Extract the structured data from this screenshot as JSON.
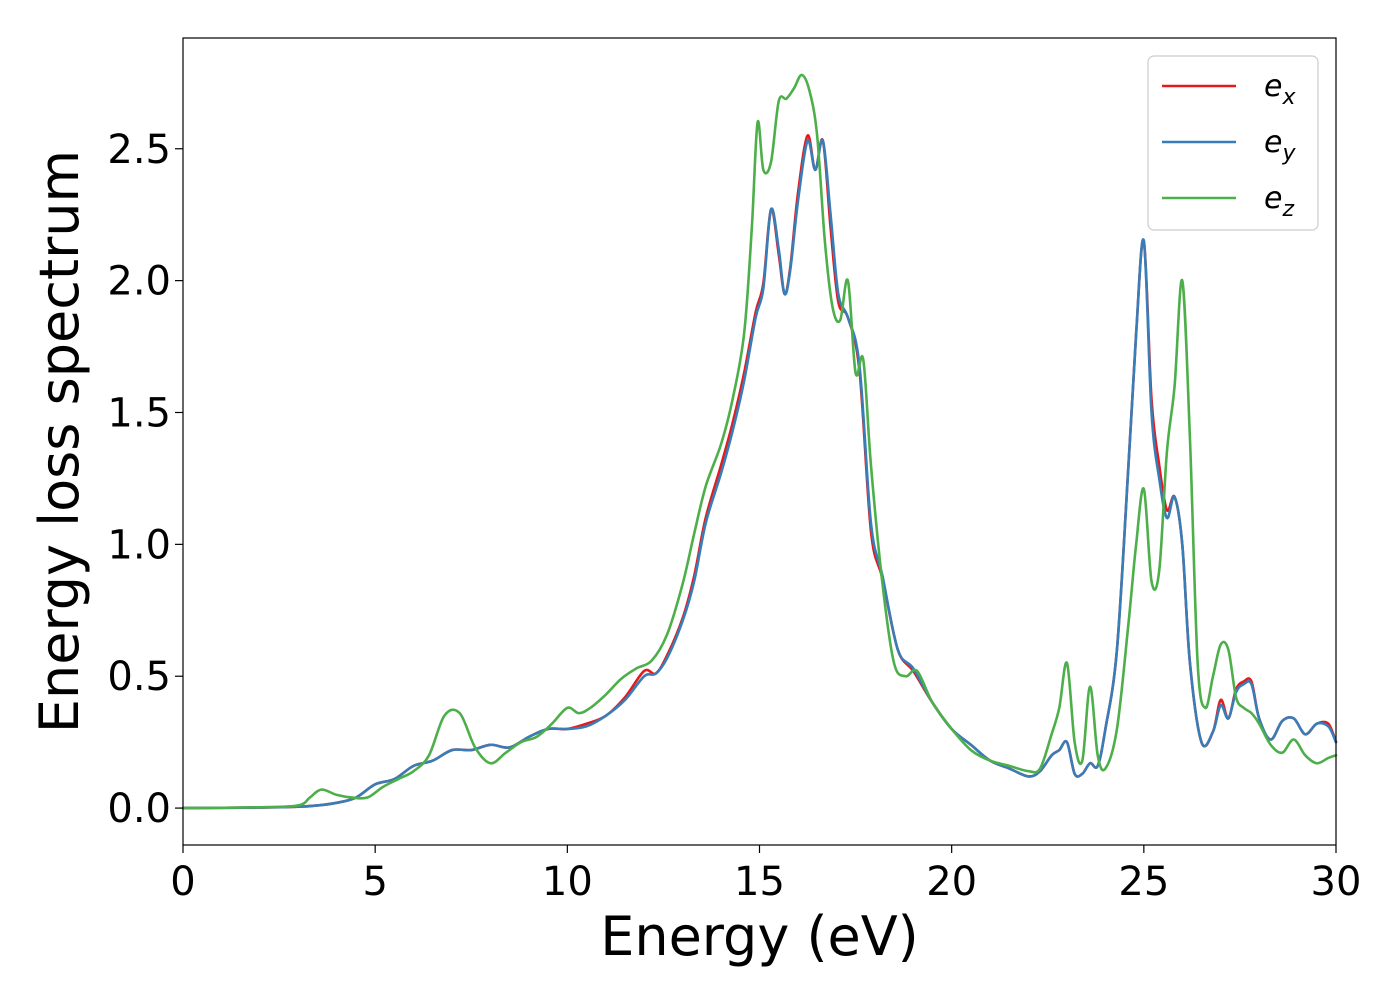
{
  "chart_data": {
    "type": "line",
    "title": "",
    "xlabel": "Energy (eV)",
    "ylabel": "Energy loss spectrum",
    "xlim": [
      0,
      30
    ],
    "ylim": [
      -0.14,
      2.92
    ],
    "xticks": [
      0,
      5,
      10,
      15,
      20,
      25,
      30
    ],
    "xtick_labels": [
      "0",
      "5",
      "10",
      "15",
      "20",
      "25",
      "30"
    ],
    "yticks": [
      0.0,
      0.5,
      1.0,
      1.5,
      2.0,
      2.5
    ],
    "ytick_labels": [
      "0.0",
      "0.5",
      "1.0",
      "1.5",
      "2.0",
      "2.5"
    ],
    "grid": false,
    "legend_position": "top-right",
    "legend": [
      {
        "base": "e",
        "sub": "x",
        "color": "#e41a1c"
      },
      {
        "base": "e",
        "sub": "y",
        "color": "#377eb8"
      },
      {
        "base": "e",
        "sub": "z",
        "color": "#4daf4a"
      }
    ],
    "series": [
      {
        "color": "#e41a1c",
        "x": [
          0,
          2,
          3,
          3.5,
          4,
          4.5,
          5,
          5.5,
          6,
          6.5,
          7,
          7.5,
          8,
          8.5,
          9,
          9.5,
          10,
          10.5,
          11,
          11.5,
          12,
          12.3,
          12.6,
          13,
          13.3,
          13.6,
          14,
          14.3,
          14.6,
          14.9,
          15.1,
          15.3,
          15.5,
          15.65,
          15.8,
          16,
          16.25,
          16.45,
          16.65,
          16.85,
          17.05,
          17.3,
          17.6,
          17.9,
          18.2,
          18.6,
          19,
          19.5,
          20,
          20.5,
          21,
          21.5,
          22,
          22.3,
          22.6,
          22.8,
          23,
          23.2,
          23.4,
          23.6,
          23.8,
          24,
          24.3,
          24.6,
          24.8,
          25,
          25.2,
          25.4,
          25.6,
          25.8,
          26,
          26.2,
          26.5,
          26.8,
          27,
          27.2,
          27.4,
          27.6,
          27.8,
          28,
          28.3,
          28.6,
          28.9,
          29.2,
          29.5,
          29.8,
          30
        ],
        "y": [
          0,
          0.002,
          0.005,
          0.01,
          0.02,
          0.04,
          0.09,
          0.11,
          0.16,
          0.18,
          0.22,
          0.22,
          0.24,
          0.23,
          0.27,
          0.3,
          0.3,
          0.32,
          0.35,
          0.42,
          0.52,
          0.51,
          0.58,
          0.72,
          0.88,
          1.1,
          1.3,
          1.46,
          1.65,
          1.88,
          1.99,
          2.27,
          2.1,
          1.95,
          2.05,
          2.33,
          2.55,
          2.42,
          2.53,
          2.2,
          1.92,
          1.86,
          1.66,
          1.05,
          0.87,
          0.6,
          0.52,
          0.4,
          0.3,
          0.24,
          0.18,
          0.15,
          0.12,
          0.14,
          0.2,
          0.22,
          0.25,
          0.13,
          0.13,
          0.17,
          0.16,
          0.3,
          0.6,
          1.3,
          1.8,
          2.15,
          1.55,
          1.3,
          1.13,
          1.18,
          1.0,
          0.55,
          0.25,
          0.29,
          0.41,
          0.34,
          0.45,
          0.48,
          0.48,
          0.34,
          0.26,
          0.33,
          0.34,
          0.28,
          0.32,
          0.32,
          0.25
        ]
      },
      {
        "color": "#377eb8",
        "x": [
          0,
          2,
          3,
          3.5,
          4,
          4.5,
          5,
          5.5,
          6,
          6.5,
          7,
          7.5,
          8,
          8.5,
          9,
          9.5,
          10,
          10.5,
          11,
          11.5,
          12,
          12.3,
          12.6,
          13,
          13.3,
          13.6,
          14,
          14.3,
          14.6,
          14.9,
          15.1,
          15.3,
          15.5,
          15.65,
          15.8,
          16,
          16.25,
          16.45,
          16.65,
          16.85,
          17.05,
          17.3,
          17.6,
          17.9,
          18.2,
          18.6,
          19,
          19.5,
          20,
          20.5,
          21,
          21.5,
          22,
          22.3,
          22.6,
          22.8,
          23,
          23.2,
          23.4,
          23.6,
          23.8,
          24,
          24.3,
          24.6,
          24.8,
          25,
          25.2,
          25.4,
          25.6,
          25.8,
          26,
          26.2,
          26.5,
          26.8,
          27,
          27.2,
          27.4,
          27.6,
          27.8,
          28,
          28.3,
          28.6,
          28.9,
          29.2,
          29.5,
          29.8,
          30
        ],
        "y": [
          0,
          0.002,
          0.005,
          0.01,
          0.02,
          0.04,
          0.09,
          0.11,
          0.16,
          0.18,
          0.22,
          0.22,
          0.24,
          0.23,
          0.27,
          0.3,
          0.3,
          0.31,
          0.35,
          0.41,
          0.5,
          0.51,
          0.57,
          0.71,
          0.86,
          1.08,
          1.27,
          1.43,
          1.62,
          1.86,
          1.97,
          2.27,
          2.12,
          1.95,
          2.04,
          2.3,
          2.53,
          2.42,
          2.53,
          2.25,
          1.95,
          1.86,
          1.68,
          1.08,
          0.88,
          0.6,
          0.53,
          0.4,
          0.3,
          0.24,
          0.18,
          0.15,
          0.12,
          0.14,
          0.2,
          0.22,
          0.25,
          0.13,
          0.13,
          0.17,
          0.16,
          0.3,
          0.6,
          1.3,
          1.8,
          2.15,
          1.5,
          1.25,
          1.1,
          1.18,
          1.0,
          0.55,
          0.25,
          0.29,
          0.39,
          0.34,
          0.44,
          0.47,
          0.47,
          0.34,
          0.26,
          0.33,
          0.34,
          0.28,
          0.32,
          0.31,
          0.25
        ]
      },
      {
        "color": "#4daf4a",
        "x": [
          0,
          2,
          3,
          3.3,
          3.6,
          4,
          4.4,
          4.8,
          5.2,
          5.6,
          6,
          6.4,
          6.8,
          7.2,
          7.6,
          8,
          8.4,
          8.8,
          9.2,
          9.6,
          10,
          10.3,
          10.6,
          11,
          11.4,
          11.8,
          12.2,
          12.6,
          13,
          13.3,
          13.6,
          14,
          14.3,
          14.6,
          14.8,
          14.95,
          15.1,
          15.3,
          15.5,
          15.7,
          15.9,
          16.1,
          16.3,
          16.5,
          16.7,
          16.9,
          17.1,
          17.3,
          17.5,
          17.7,
          17.9,
          18.2,
          18.5,
          18.8,
          19.1,
          19.5,
          20,
          20.5,
          21,
          21.5,
          22,
          22.3,
          22.6,
          22.8,
          23,
          23.2,
          23.4,
          23.6,
          23.8,
          24,
          24.3,
          24.6,
          24.8,
          25,
          25.2,
          25.4,
          25.6,
          25.8,
          26,
          26.2,
          26.4,
          26.6,
          26.8,
          27,
          27.2,
          27.4,
          27.6,
          27.8,
          28,
          28.3,
          28.6,
          28.9,
          29.2,
          29.5,
          29.8,
          30
        ],
        "y": [
          0,
          0.003,
          0.01,
          0.04,
          0.07,
          0.05,
          0.04,
          0.04,
          0.08,
          0.11,
          0.14,
          0.2,
          0.35,
          0.36,
          0.23,
          0.17,
          0.21,
          0.25,
          0.27,
          0.32,
          0.38,
          0.36,
          0.38,
          0.43,
          0.49,
          0.53,
          0.56,
          0.66,
          0.85,
          1.04,
          1.22,
          1.38,
          1.55,
          1.8,
          2.2,
          2.6,
          2.42,
          2.45,
          2.68,
          2.69,
          2.73,
          2.78,
          2.72,
          2.55,
          2.15,
          1.9,
          1.85,
          2.0,
          1.65,
          1.7,
          1.3,
          0.85,
          0.55,
          0.5,
          0.52,
          0.4,
          0.3,
          0.22,
          0.18,
          0.16,
          0.14,
          0.15,
          0.28,
          0.38,
          0.55,
          0.25,
          0.18,
          0.46,
          0.2,
          0.15,
          0.3,
          0.7,
          1.0,
          1.21,
          0.86,
          0.9,
          1.35,
          1.6,
          2.0,
          1.4,
          0.55,
          0.38,
          0.5,
          0.62,
          0.6,
          0.42,
          0.38,
          0.36,
          0.32,
          0.24,
          0.21,
          0.26,
          0.2,
          0.17,
          0.19,
          0.2
        ]
      }
    ]
  }
}
